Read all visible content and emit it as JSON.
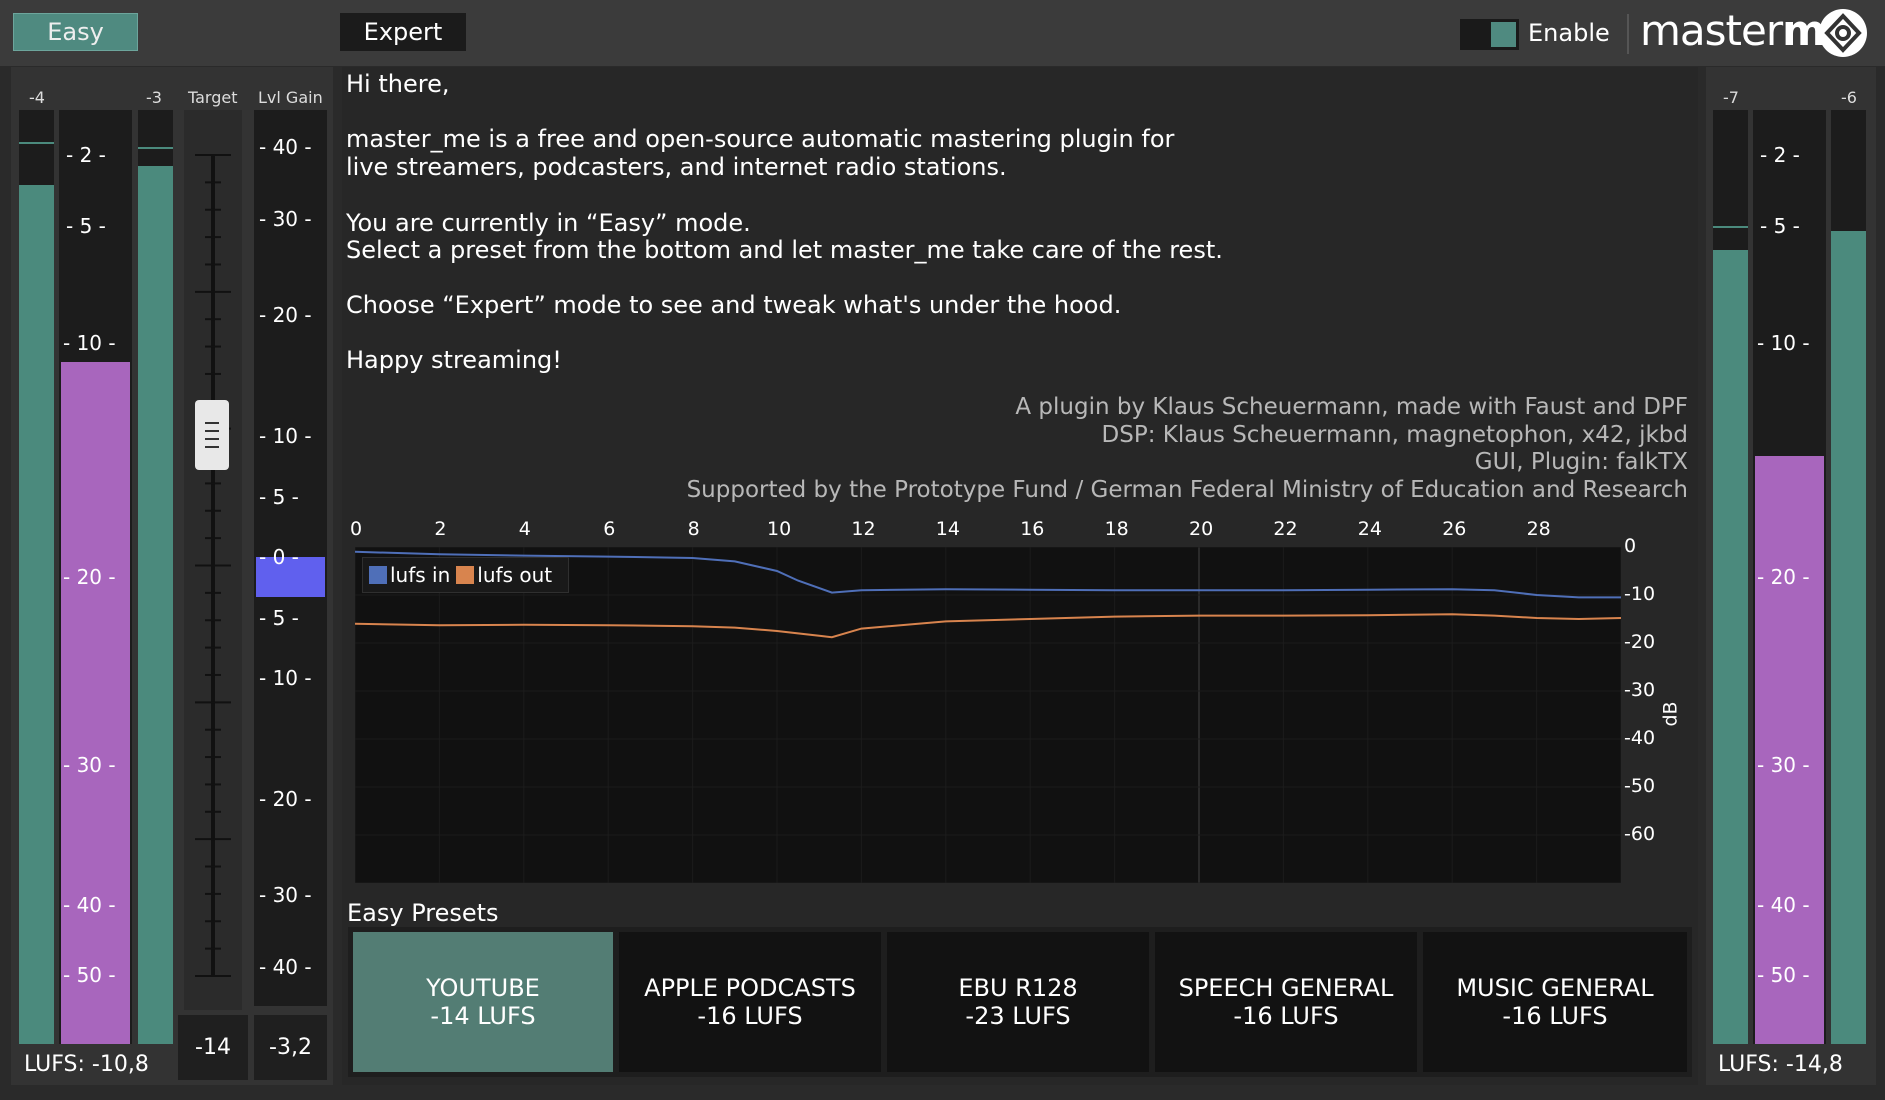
{
  "header": {
    "mode_easy": "Easy",
    "mode_expert": "Expert",
    "active_mode": "Easy",
    "enable_label": "Enable",
    "enabled": true,
    "logo_light": "master",
    "logo_bold": "me",
    "logo_icon": "masterme-logo-icon"
  },
  "left": {
    "peak_left_label": "-4",
    "peak_right_label": "-3",
    "target_label": "Target",
    "lvl_gain_label": "Lvl Gain",
    "meter_ticks": [
      "- 2 -",
      "- 5 -",
      "- 10 -",
      "- 20 -",
      "- 30 -",
      "- 40 -",
      "- 50 -"
    ],
    "gain_ticks_upper": [
      "- 40 -",
      "- 30 -",
      "- 20 -",
      "- 10 -",
      "- 5 -",
      "- 0 -"
    ],
    "gain_ticks_lower": [
      "- 5 -",
      "- 10 -",
      "- 20 -",
      "- 30 -",
      "- 40 -"
    ],
    "target_value": "-14",
    "gain_value": "-3,2",
    "lufs_readout": "LUFS: -10,8"
  },
  "right": {
    "peak_left_label": "-7",
    "peak_right_label": "-6",
    "meter_ticks": [
      "- 2 -",
      "- 5 -",
      "- 10 -",
      "- 20 -",
      "- 30 -",
      "- 40 -",
      "- 50 -"
    ],
    "lufs_readout": "LUFS: -14,8"
  },
  "intro": {
    "greeting": "Hi there,",
    "desc_1": "master_me is a free and open-source automatic mastering plugin for",
    "desc_2": "live streamers, podcasters, and internet radio stations.",
    "mode_1": "You are currently in “Easy” mode.",
    "mode_2": "Select a preset from the bottom and let master_me take care of the rest.",
    "expert_hint": "Choose “Expert” mode to see and tweak what's under the hood.",
    "signoff": "Happy streaming!",
    "credits": [
      "A plugin by Klaus Scheuermann, made with Faust and DPF",
      "DSP: Klaus Scheuermann, magnetophon, x42, jkbd",
      "GUI, Plugin: falkTX",
      "Supported by the Prototype Fund / German Federal Ministry of Education and Research"
    ]
  },
  "graph": {
    "x_ticks": [
      "0",
      "2",
      "4",
      "6",
      "8",
      "10",
      "12",
      "14",
      "16",
      "18",
      "20",
      "22",
      "24",
      "26",
      "28"
    ],
    "y_ticks": [
      "0",
      "-10",
      "-20",
      "-30",
      "-40",
      "-50",
      "-60"
    ],
    "y_unit": "dB",
    "legend_in": "lufs in",
    "legend_out": "lufs out",
    "color_in": "#4f6fb8",
    "color_out": "#d8844e"
  },
  "chart_data": {
    "type": "line",
    "x_ticks": [
      0,
      2,
      4,
      6,
      8,
      10,
      12,
      14,
      16,
      18,
      20,
      22,
      24,
      26,
      28
    ],
    "ylabel": "dB",
    "ylim": [
      -70,
      0
    ],
    "xlim": [
      0,
      30
    ],
    "grid": true,
    "legend_position": "top-left",
    "series": [
      {
        "name": "lufs in",
        "color": "#4f6fb8",
        "x": [
          0,
          2,
          4,
          6,
          8,
          9,
          10,
          10.5,
          11.3,
          12,
          14,
          16,
          18,
          20,
          22,
          24,
          26,
          27,
          28,
          29,
          30
        ],
        "y": [
          -1,
          -1.5,
          -1.8,
          -2,
          -2.3,
          -3,
          -5,
          -7,
          -9.5,
          -9,
          -8.8,
          -8.9,
          -9,
          -9,
          -9,
          -8.9,
          -8.8,
          -9,
          -10,
          -10.5,
          -10.5
        ]
      },
      {
        "name": "lufs out",
        "color": "#d8844e",
        "x": [
          0,
          2,
          4,
          6,
          8,
          9,
          10,
          11,
          11.3,
          12,
          14,
          16,
          18,
          20,
          22,
          24,
          26,
          27,
          28,
          29,
          30
        ],
        "y": [
          -16,
          -16.3,
          -16.2,
          -16.3,
          -16.5,
          -16.8,
          -17.5,
          -18.5,
          -18.8,
          -17,
          -15.5,
          -15,
          -14.5,
          -14.3,
          -14.3,
          -14.2,
          -14,
          -14.3,
          -14.8,
          -15,
          -14.8
        ]
      }
    ]
  },
  "presets": {
    "label": "Easy Presets",
    "items": [
      {
        "name": "YOUTUBE",
        "target": "-14 LUFS",
        "active": true
      },
      {
        "name": "APPLE PODCASTS",
        "target": "-16 LUFS",
        "active": false
      },
      {
        "name": "EBU R128",
        "target": "-23 LUFS",
        "active": false
      },
      {
        "name": "SPEECH GENERAL",
        "target": "-16 LUFS",
        "active": false
      },
      {
        "name": "MUSIC GENERAL",
        "target": "-16 LUFS",
        "active": false
      }
    ]
  },
  "levels": {
    "left_peak_l": 0.92,
    "left_lufs": 0.73,
    "left_peak_r": 0.94,
    "right_peak_l": 0.85,
    "right_lufs": 0.63,
    "right_peak_r": 0.87,
    "target_lufs": -14,
    "gain_db": -3.2
  }
}
